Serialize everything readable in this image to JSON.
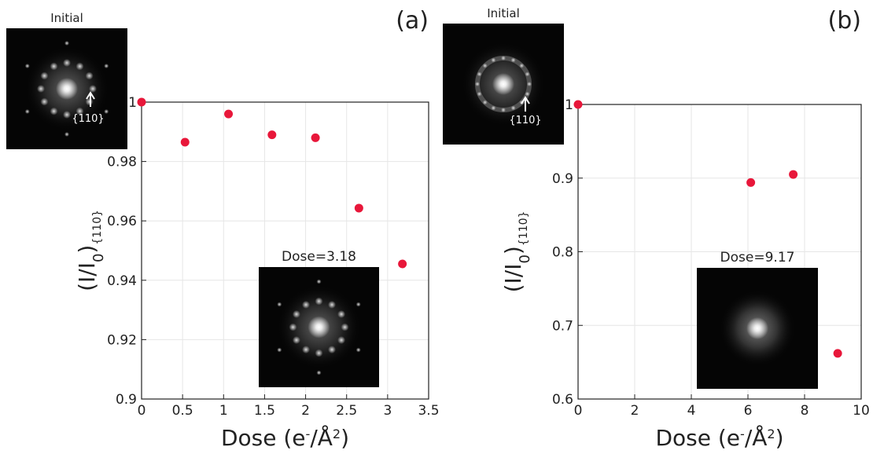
{
  "chart_data": [
    {
      "type": "scatter",
      "panel_label": "(a)",
      "x_label": [
        "Dose (e",
        "-",
        "/Å",
        "2",
        ")"
      ],
      "y_label": [
        "(I/I",
        "0",
        ")",
        "{110}"
      ],
      "x": [
        0,
        0.53,
        1.06,
        1.59,
        2.12,
        2.65,
        3.18
      ],
      "values": [
        1.0,
        0.9865,
        0.996,
        0.989,
        0.988,
        0.9643,
        0.9455
      ],
      "color": "#e8173a",
      "grid": true,
      "xlim": [
        0,
        3.5
      ],
      "xticks": [
        0,
        0.5,
        1,
        1.5,
        2,
        2.5,
        3,
        3.5
      ],
      "ylim": [
        0.9,
        1
      ],
      "yticks": [
        0.9,
        0.92,
        0.94,
        0.96,
        0.98,
        1
      ],
      "insets": [
        {
          "title": "Initial",
          "annotation": "{110}"
        },
        {
          "title": "Dose=3.18"
        }
      ]
    },
    {
      "type": "scatter",
      "panel_label": "(b)",
      "x_label": [
        "Dose (e",
        "-",
        "/Å",
        "2",
        ")"
      ],
      "y_label": [
        "(I/I",
        "0",
        ")",
        "{110}"
      ],
      "x": [
        0,
        6.1,
        7.6,
        9.17
      ],
      "values": [
        1.0,
        0.894,
        0.905,
        0.662
      ],
      "color": "#e8173a",
      "grid": true,
      "xlim": [
        0,
        10
      ],
      "xticks": [
        0,
        2,
        4,
        6,
        8,
        10
      ],
      "ylim": [
        0.6,
        1
      ],
      "yticks": [
        0.6,
        0.7,
        0.8,
        0.9,
        1
      ],
      "insets": [
        {
          "title": "Initial",
          "annotation": "{110}"
        },
        {
          "title": "Dose=9.17"
        }
      ]
    }
  ]
}
